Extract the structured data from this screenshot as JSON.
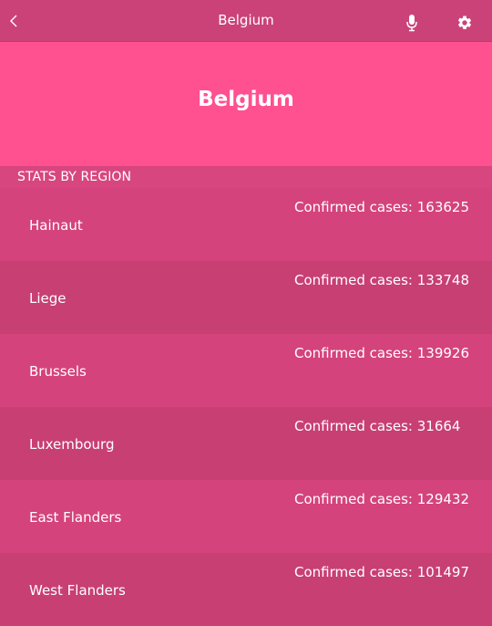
{
  "header": {
    "title": "Belgium",
    "icons": {
      "back": "chevron-left-icon",
      "mic": "microphone-icon",
      "settings": "gear-icon"
    }
  },
  "hero": {
    "title": "Belgium"
  },
  "section": {
    "label": "STATS BY REGION"
  },
  "regions": [
    {
      "name": "Hainaut",
      "cases": "Confirmed cases: 163625"
    },
    {
      "name": "Liege",
      "cases": "Confirmed cases: 133748"
    },
    {
      "name": "Brussels",
      "cases": "Confirmed cases: 139926"
    },
    {
      "name": "Luxembourg",
      "cases": "Confirmed cases: 31664"
    },
    {
      "name": "East Flanders",
      "cases": "Confirmed cases: 129432"
    },
    {
      "name": "West Flanders",
      "cases": "Confirmed cases: 101497"
    }
  ],
  "colors": {
    "topbar": "#cb4279",
    "hero": "#ff5090",
    "row_light": "#d4437c",
    "row_dark": "#c83f74"
  }
}
